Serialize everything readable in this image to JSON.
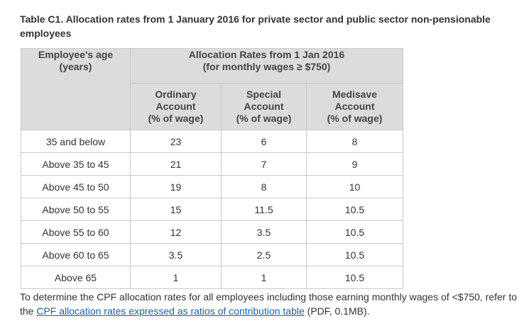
{
  "caption": "Table C1. Allocation rates from 1 January 2016 for private sector and public sector non-pensionable employees",
  "table": {
    "age_header": {
      "line1": "Employee's age",
      "line2": "(years)"
    },
    "group_header": {
      "line1": "Allocation Rates from 1 Jan 2016",
      "line2": "(for monthly wages ≥ $750)"
    },
    "sub_headers": [
      {
        "line1": "Ordinary",
        "line2": "Account",
        "line3": "(% of wage)"
      },
      {
        "line1": "Special",
        "line2": "Account",
        "line3": "(% of wage)"
      },
      {
        "line1": "Medisave",
        "line2": "Account",
        "line3": "(% of wage)"
      }
    ],
    "rows": [
      {
        "age": "35 and below",
        "ordinary": "23",
        "special": "6",
        "medisave": "8"
      },
      {
        "age": "Above 35 to 45",
        "ordinary": "21",
        "special": "7",
        "medisave": "9"
      },
      {
        "age": "Above 45 to 50",
        "ordinary": "19",
        "special": "8",
        "medisave": "10"
      },
      {
        "age": "Above 50 to 55",
        "ordinary": "15",
        "special": "11.5",
        "medisave": "10.5"
      },
      {
        "age": "Above 55 to 60",
        "ordinary": "12",
        "special": "3.5",
        "medisave": "10.5"
      },
      {
        "age": "Above 60 to 65",
        "ordinary": "3.5",
        "special": "2.5",
        "medisave": "10.5"
      },
      {
        "age": "Above 65",
        "ordinary": "1",
        "special": "1",
        "medisave": "10.5"
      }
    ]
  },
  "footnote": {
    "text_before": "To determine the CPF allocation rates for all employees including those earning monthly wages of <$750, refer to the ",
    "link_text": "CPF allocation rates expressed as ratios of contribution table",
    "text_after": " (PDF, 0.1MB)."
  }
}
